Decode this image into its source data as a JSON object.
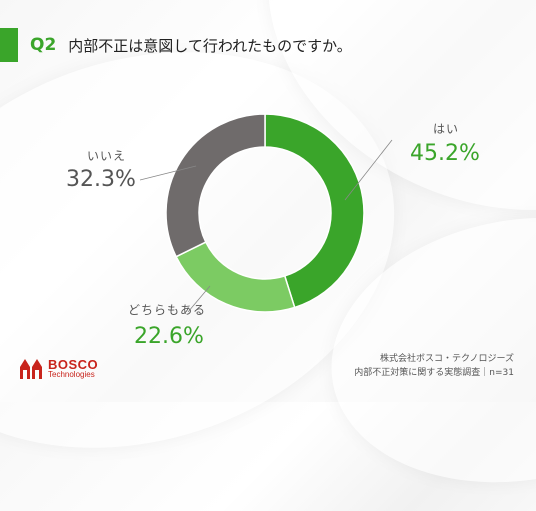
{
  "header": {
    "question_number": "Q2",
    "question_text": "内部不正は意図して行われたものですか。"
  },
  "chart_data": {
    "type": "pie",
    "donut": true,
    "categories": [
      "はい",
      "どちらもある",
      "いいえ"
    ],
    "values": [
      45.2,
      22.6,
      32.3
    ],
    "value_labels": [
      "45.2%",
      "22.6%",
      "32.3%"
    ],
    "colors": [
      "#3aa52a",
      "#7ccb63",
      "#6f6b6b"
    ]
  },
  "logo": {
    "brand": "BOSCO",
    "sub": "Technologies"
  },
  "source": {
    "line1": "株式会社ボスコ・テクノロジーズ",
    "line2": "内部不正対策に関する実態調査｜n=31"
  }
}
